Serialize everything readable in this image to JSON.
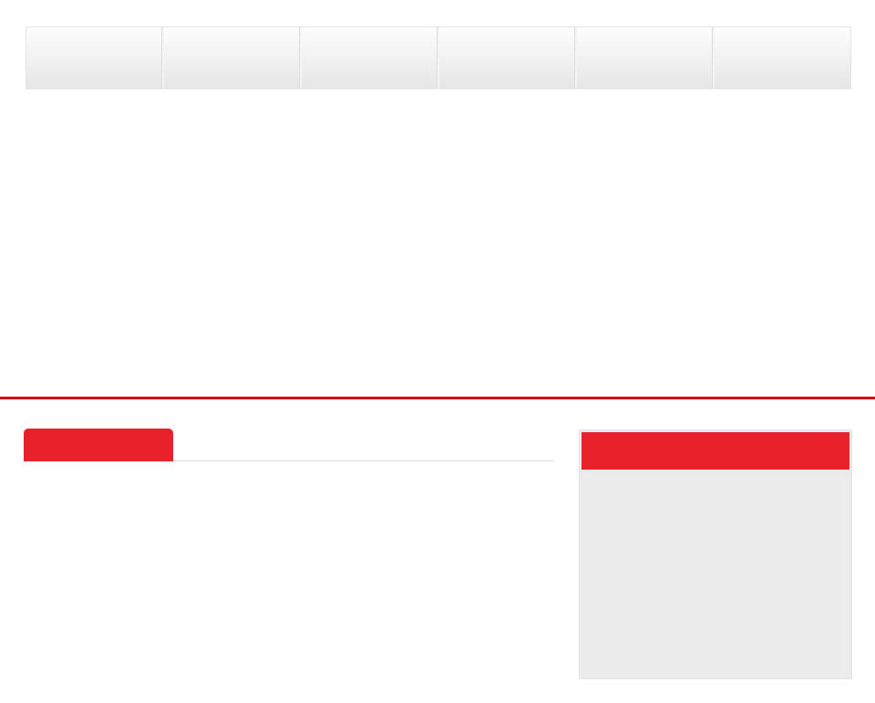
{
  "colors": {
    "accent": "#e8212b",
    "rule": "#d9000d",
    "panel_bg": "#ebebeb"
  },
  "nav": {
    "items": [
      {},
      {},
      {},
      {},
      {},
      {}
    ]
  }
}
